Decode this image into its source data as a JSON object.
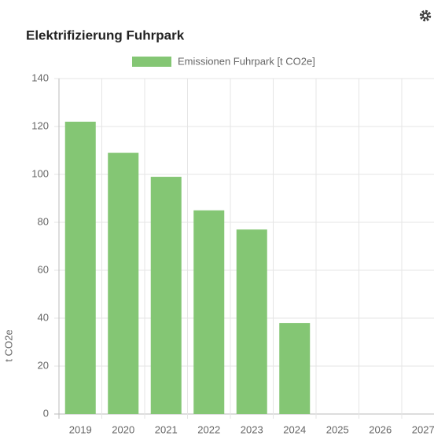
{
  "chart_data": {
    "type": "bar",
    "title": "Elektrifizierung Fuhrpark",
    "y_label": "t CO2e",
    "categories": [
      "2019",
      "2020",
      "2021",
      "2022",
      "2023",
      "2024",
      "2025",
      "2026",
      "2027"
    ],
    "series": [
      {
        "name": "Emissionen Fuhrpark [t CO2e]",
        "color": "#84c674",
        "values": [
          122,
          109,
          99,
          85,
          77,
          38,
          null,
          null,
          null
        ]
      }
    ],
    "ylim": [
      0,
      140
    ],
    "yticks": [
      0,
      20,
      40,
      60,
      80,
      100,
      120,
      140
    ],
    "grid": true,
    "legend": "top"
  }
}
